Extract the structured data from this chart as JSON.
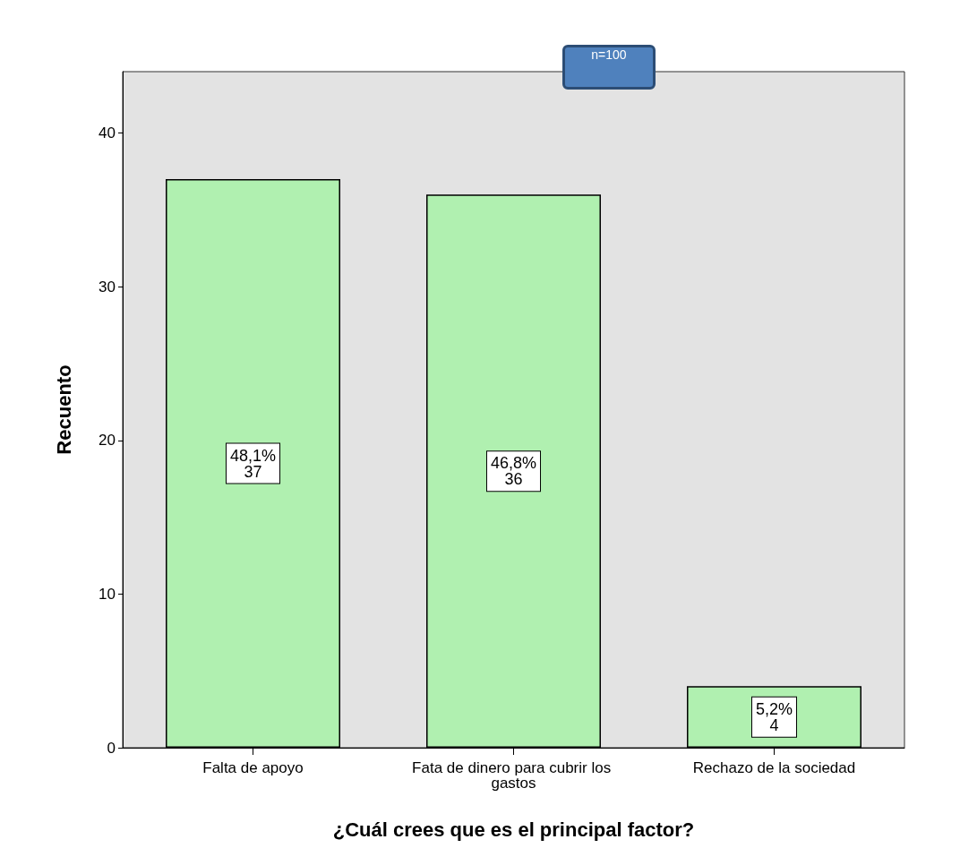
{
  "chart_data": {
    "type": "bar",
    "xlabel": "¿Cuál crees que es el principal factor?",
    "ylabel": "Recuento",
    "categories": [
      "Falta de apoyo",
      "Fata de dinero para cubrir los gastos",
      "Rechazo de la sociedad"
    ],
    "values": [
      37,
      36,
      4
    ],
    "color": "#b0f0b0",
    "value_labels": [
      "48,1%\n37",
      "46,8%\n36",
      "5,2%\n4"
    ],
    "ylim": [
      0,
      44
    ],
    "yticks": [
      0,
      10,
      20,
      30,
      40
    ],
    "grid": false,
    "annotations": [
      "n=100"
    ]
  }
}
